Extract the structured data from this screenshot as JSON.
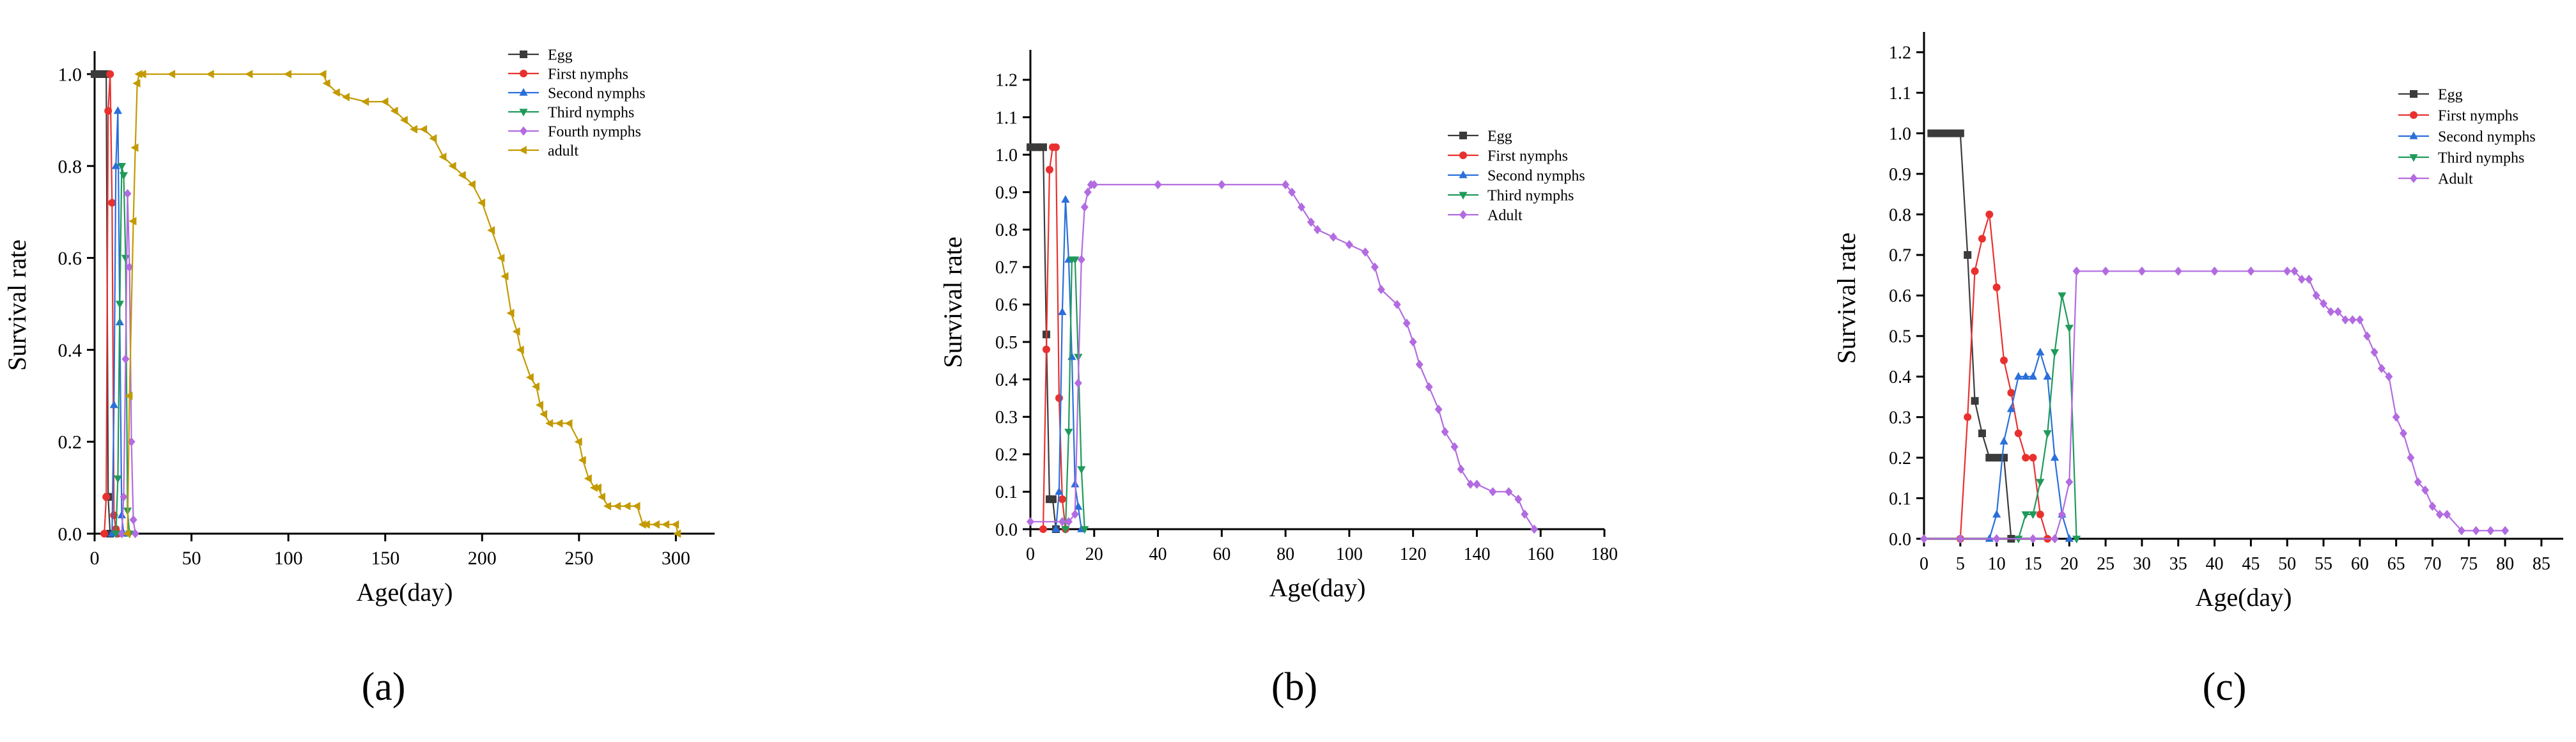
{
  "figure": {
    "panel_labels": [
      "(a)",
      "(b)",
      "(c)"
    ]
  },
  "chart_data": [
    {
      "type": "line",
      "panel": "(a)",
      "xlabel": "Age(day)",
      "ylabel": "Survival rate",
      "xlim": [
        0,
        320
      ],
      "ylim": [
        0,
        1.05
      ],
      "xticks": [
        0,
        50,
        100,
        150,
        200,
        250,
        300
      ],
      "yticks": [
        0,
        0.2,
        0.4,
        0.6,
        0.8,
        1.0
      ],
      "tick_labels_y": [
        "0.0",
        "0.2",
        "0.4",
        "0.6",
        "0.8",
        "1.0"
      ],
      "legend_position": "top-right",
      "series": [
        {
          "name": "Egg",
          "color": "#3b3b3b",
          "marker": "square",
          "x": [
            0,
            2,
            4,
            6,
            7,
            8
          ],
          "y": [
            1.0,
            1.0,
            1.0,
            1.0,
            0.08,
            0
          ]
        },
        {
          "name": "First nymphs",
          "color": "#e8312f",
          "marker": "circle",
          "x": [
            5,
            6,
            7,
            8,
            9,
            10,
            11,
            12
          ],
          "y": [
            0,
            0.08,
            0.92,
            1.0,
            0.72,
            0.04,
            0.01,
            0
          ]
        },
        {
          "name": "Second nymphs",
          "color": "#2a6fdb",
          "marker": "triangle-up",
          "x": [
            9,
            10,
            11,
            12,
            13,
            14,
            15
          ],
          "y": [
            0,
            0.28,
            0.8,
            0.92,
            0.46,
            0.04,
            0
          ]
        },
        {
          "name": "Third nymphs",
          "color": "#1f9a5a",
          "marker": "triangle-down",
          "x": [
            11,
            12,
            13,
            14,
            15,
            16,
            17,
            18
          ],
          "y": [
            0,
            0.12,
            0.5,
            0.8,
            0.78,
            0.6,
            0.05,
            0
          ]
        },
        {
          "name": "Fourth nymphs",
          "color": "#b26be0",
          "marker": "diamond",
          "x": [
            14,
            15,
            16,
            17,
            18,
            19,
            20,
            21
          ],
          "y": [
            0,
            0.08,
            0.38,
            0.74,
            0.58,
            0.2,
            0.03,
            0
          ]
        },
        {
          "name": "adult",
          "color": "#c39a00",
          "marker": "triangle-left",
          "x": [
            17,
            18,
            20,
            21,
            22,
            23,
            25,
            40,
            60,
            80,
            100,
            118,
            120,
            125,
            130,
            140,
            150,
            155,
            160,
            165,
            170,
            175,
            180,
            185,
            190,
            195,
            200,
            205,
            210,
            212,
            215,
            218,
            220,
            225,
            228,
            230,
            232,
            235,
            240,
            245,
            250,
            252,
            255,
            258,
            260,
            262,
            265,
            270,
            275,
            280,
            283,
            285,
            290,
            295,
            300,
            301
          ],
          "y": [
            0,
            0.3,
            0.68,
            0.84,
            0.98,
            1.0,
            1.0,
            1.0,
            1.0,
            1.0,
            1.0,
            1.0,
            0.98,
            0.96,
            0.95,
            0.94,
            0.94,
            0.92,
            0.9,
            0.88,
            0.88,
            0.86,
            0.82,
            0.8,
            0.78,
            0.76,
            0.72,
            0.66,
            0.6,
            0.56,
            0.48,
            0.44,
            0.4,
            0.34,
            0.32,
            0.28,
            0.26,
            0.24,
            0.24,
            0.24,
            0.2,
            0.16,
            0.12,
            0.1,
            0.1,
            0.08,
            0.06,
            0.06,
            0.06,
            0.06,
            0.02,
            0.02,
            0.02,
            0.02,
            0.02,
            0
          ]
        }
      ]
    },
    {
      "type": "line",
      "panel": "(b)",
      "xlabel": "Age(day)",
      "ylabel": "Survival rate",
      "xlim": [
        0,
        180
      ],
      "ylim": [
        0,
        1.28
      ],
      "xticks": [
        0,
        20,
        40,
        60,
        80,
        100,
        120,
        140,
        160,
        180
      ],
      "yticks": [
        0,
        0.1,
        0.2,
        0.3,
        0.4,
        0.5,
        0.6,
        0.7,
        0.8,
        0.9,
        1.0,
        1.1,
        1.2
      ],
      "tick_labels_y": [
        "0.0",
        "0.1",
        "0.2",
        "0.3",
        "0.4",
        "0.5",
        "0.6",
        "0.7",
        "0.8",
        "0.9",
        "1.0",
        "1.1",
        "1.2"
      ],
      "legend_position": "top-right",
      "series": [
        {
          "name": "Egg",
          "color": "#3b3b3b",
          "marker": "square",
          "x": [
            0,
            2,
            4,
            5,
            6,
            7,
            8
          ],
          "y": [
            1.02,
            1.02,
            1.02,
            0.52,
            0.08,
            0.08,
            0
          ]
        },
        {
          "name": "First nymphs",
          "color": "#e8312f",
          "marker": "circle",
          "x": [
            4,
            5,
            6,
            7,
            8,
            9,
            10,
            11
          ],
          "y": [
            0,
            0.48,
            0.96,
            1.02,
            1.02,
            0.35,
            0.08,
            0
          ]
        },
        {
          "name": "Second nymphs",
          "color": "#2a6fdb",
          "marker": "triangle-up",
          "x": [
            8,
            9,
            10,
            11,
            12,
            13,
            14,
            15,
            16
          ],
          "y": [
            0,
            0.1,
            0.58,
            0.88,
            0.72,
            0.46,
            0.12,
            0.06,
            0
          ]
        },
        {
          "name": "Third nymphs",
          "color": "#1f9a5a",
          "marker": "triangle-down",
          "x": [
            11,
            12,
            13,
            14,
            15,
            16,
            17
          ],
          "y": [
            0,
            0.26,
            0.72,
            0.72,
            0.46,
            0.16,
            0
          ]
        },
        {
          "name": "Adult",
          "color": "#b26be0",
          "marker": "diamond",
          "x": [
            0,
            10,
            12,
            14,
            15,
            16,
            17,
            18,
            19,
            20,
            40,
            60,
            80,
            82,
            85,
            88,
            90,
            95,
            100,
            105,
            108,
            110,
            115,
            118,
            120,
            122,
            125,
            128,
            130,
            133,
            135,
            138,
            140,
            145,
            150,
            153,
            155,
            158
          ],
          "y": [
            0.02,
            0.02,
            0.02,
            0.04,
            0.39,
            0.72,
            0.86,
            0.9,
            0.92,
            0.92,
            0.92,
            0.92,
            0.92,
            0.9,
            0.86,
            0.82,
            0.8,
            0.78,
            0.76,
            0.74,
            0.7,
            0.64,
            0.6,
            0.55,
            0.5,
            0.44,
            0.38,
            0.32,
            0.26,
            0.22,
            0.16,
            0.12,
            0.12,
            0.1,
            0.1,
            0.08,
            0.04,
            0
          ]
        }
      ]
    },
    {
      "type": "line",
      "panel": "(c)",
      "xlabel": "Age(day)",
      "ylabel": "Survival rate",
      "xlim": [
        0,
        88
      ],
      "ylim": [
        0,
        1.25
      ],
      "xticks": [
        0,
        5,
        10,
        15,
        20,
        25,
        30,
        35,
        40,
        45,
        50,
        55,
        60,
        65,
        70,
        75,
        80,
        85
      ],
      "yticks": [
        0,
        0.1,
        0.2,
        0.3,
        0.4,
        0.5,
        0.6,
        0.7,
        0.8,
        0.9,
        1.0,
        1.1,
        1.2
      ],
      "tick_labels_y": [
        "0.0",
        "0.1",
        "0.2",
        "0.3",
        "0.4",
        "0.5",
        "0.6",
        "0.7",
        "0.8",
        "0.9",
        "1.0",
        "1.1",
        "1.2"
      ],
      "legend_position": "top-right",
      "series": [
        {
          "name": "Egg",
          "color": "#3b3b3b",
          "marker": "square",
          "x": [
            1,
            2,
            3,
            4,
            5,
            6,
            7,
            8,
            9,
            10,
            11,
            12
          ],
          "y": [
            1.0,
            1.0,
            1.0,
            1.0,
            1.0,
            0.7,
            0.34,
            0.26,
            0.2,
            0.2,
            0.2,
            0
          ]
        },
        {
          "name": "First nymphs",
          "color": "#e8312f",
          "marker": "circle",
          "x": [
            5,
            6,
            7,
            8,
            9,
            10,
            11,
            12,
            13,
            14,
            15,
            16,
            17
          ],
          "y": [
            0,
            0.3,
            0.66,
            0.74,
            0.8,
            0.62,
            0.44,
            0.36,
            0.26,
            0.2,
            0.2,
            0.06,
            0
          ]
        },
        {
          "name": "Second nymphs",
          "color": "#2a6fdb",
          "marker": "triangle-up",
          "x": [
            9,
            10,
            11,
            12,
            13,
            14,
            15,
            16,
            17,
            18,
            19,
            20
          ],
          "y": [
            0,
            0.06,
            0.24,
            0.32,
            0.4,
            0.4,
            0.4,
            0.46,
            0.4,
            0.2,
            0.06,
            0
          ]
        },
        {
          "name": "Third nymphs",
          "color": "#1f9a5a",
          "marker": "triangle-down",
          "x": [
            13,
            14,
            15,
            16,
            17,
            18,
            19,
            20,
            21
          ],
          "y": [
            0,
            0.06,
            0.06,
            0.14,
            0.26,
            0.46,
            0.6,
            0.52,
            0
          ]
        },
        {
          "name": "Adult",
          "color": "#b26be0",
          "marker": "diamond",
          "x": [
            0,
            5,
            10,
            15,
            18,
            19,
            20,
            21,
            25,
            30,
            35,
            40,
            45,
            50,
            51,
            52,
            53,
            54,
            55,
            56,
            57,
            58,
            59,
            60,
            61,
            62,
            63,
            64,
            65,
            66,
            67,
            68,
            69,
            70,
            71,
            72,
            74,
            76,
            78,
            80
          ],
          "y": [
            0,
            0,
            0,
            0,
            0,
            0.06,
            0.14,
            0.66,
            0.66,
            0.66,
            0.66,
            0.66,
            0.66,
            0.66,
            0.66,
            0.64,
            0.64,
            0.6,
            0.58,
            0.56,
            0.56,
            0.54,
            0.54,
            0.54,
            0.5,
            0.46,
            0.42,
            0.4,
            0.3,
            0.26,
            0.2,
            0.14,
            0.12,
            0.08,
            0.06,
            0.06,
            0.02,
            0.02,
            0.02,
            0.02
          ]
        }
      ]
    }
  ]
}
